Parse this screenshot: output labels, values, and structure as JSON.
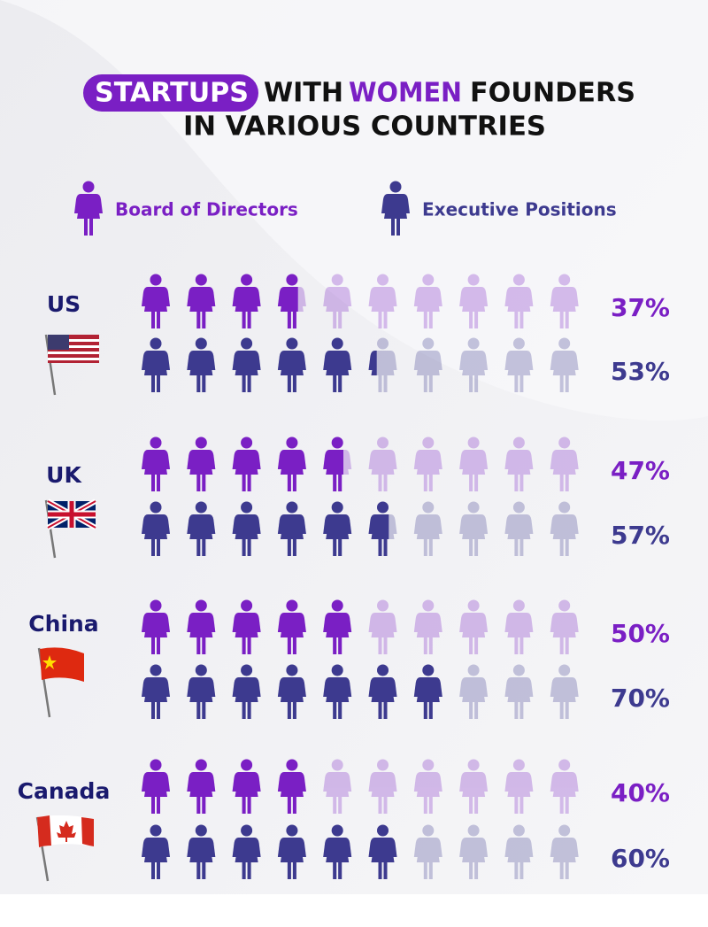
{
  "chart_data": {
    "type": "pictogram",
    "title": [
      "STARTUPS",
      "WITH",
      "WOMEN",
      "FOUNDERS",
      "IN VARIOUS COUNTRIES"
    ],
    "categories": [
      "US",
      "UK",
      "China",
      "Canada"
    ],
    "xlim": [
      0,
      100
    ],
    "series": [
      {
        "name": "Board of Directors",
        "color": "#7a1fc4",
        "values": [
          37,
          47,
          50,
          40
        ],
        "value_labels": [
          "37%",
          "47%",
          "50%",
          "40%"
        ]
      },
      {
        "name": "Executive Positions",
        "color": "#3d3a8f",
        "values": [
          53,
          57,
          70,
          60
        ],
        "value_labels": [
          "53%",
          "57%",
          "70%",
          "60%"
        ]
      }
    ]
  }
}
